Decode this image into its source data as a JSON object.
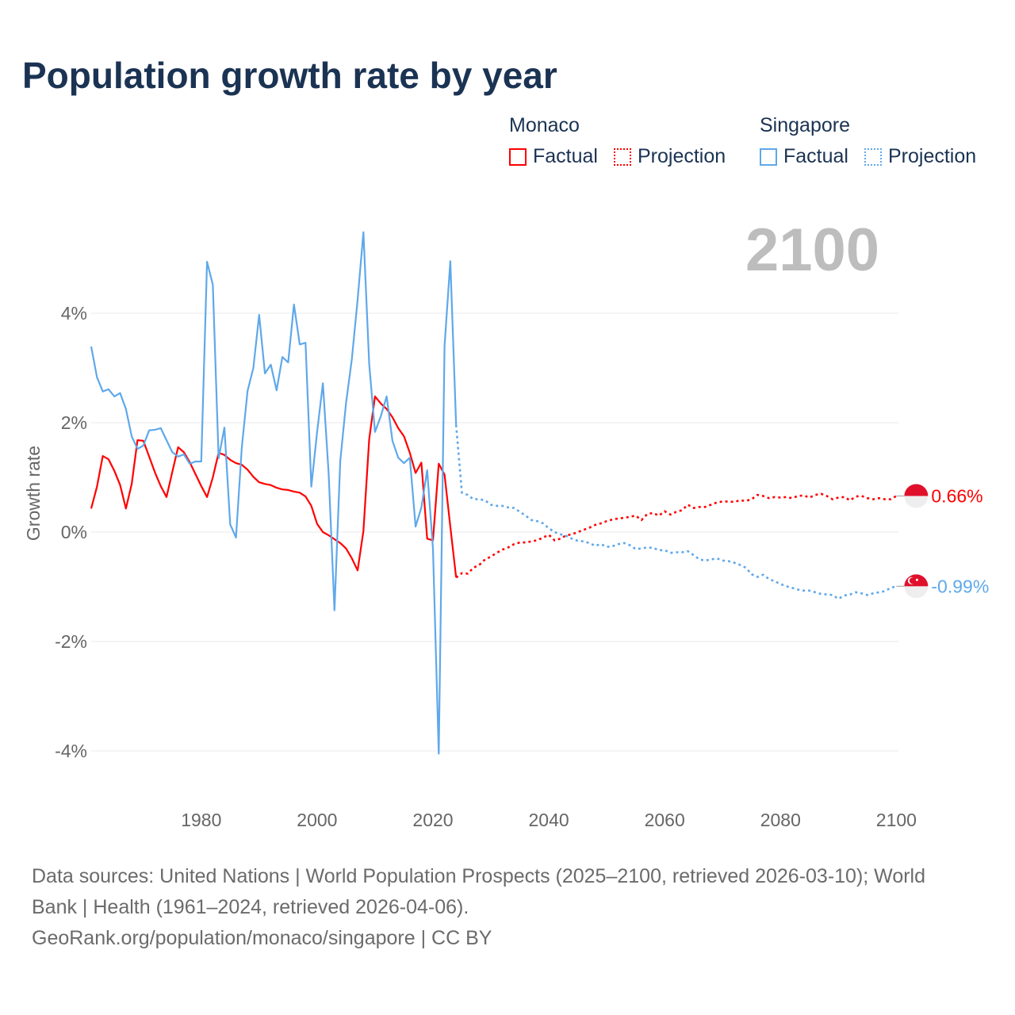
{
  "chart_data": {
    "type": "line",
    "title": "Population growth rate by year",
    "ylabel": "Growth rate",
    "xlabel": "",
    "xlim": [
      1961,
      2100
    ],
    "ylim": [
      -4.8,
      5.5
    ],
    "x_ticks": [
      1980,
      2000,
      2020,
      2040,
      2060,
      2080,
      2100
    ],
    "x_tick_labels": [
      "1980",
      "2000",
      "2020",
      "2040",
      "2060",
      "2080",
      "2100"
    ],
    "y_ticks": [
      4,
      2,
      0,
      -2,
      -4
    ],
    "y_tick_labels": [
      "4%",
      "2%",
      "0%",
      "-2%",
      "-4%"
    ],
    "grid": true,
    "current_year_label": "2100",
    "legend": {
      "placement": "top-right",
      "groups": [
        {
          "name": "Monaco",
          "factual": "Factual",
          "projection": "Projection",
          "color": "#ff0000"
        },
        {
          "name": "Singapore",
          "factual": "Factual",
          "projection": "Projection",
          "color": "#5fa8ea"
        }
      ]
    },
    "series": [
      {
        "name": "Monaco",
        "color": "#ff0000",
        "end_label": "0.66%",
        "factual": [
          [
            1961,
            0.43
          ],
          [
            1962,
            0.83
          ],
          [
            1963,
            1.39
          ],
          [
            1964,
            1.33
          ],
          [
            1965,
            1.12
          ],
          [
            1966,
            0.86
          ],
          [
            1967,
            0.43
          ],
          [
            1968,
            0.88
          ],
          [
            1969,
            1.68
          ],
          [
            1970,
            1.67
          ],
          [
            1971,
            1.38
          ],
          [
            1972,
            1.09
          ],
          [
            1973,
            0.84
          ],
          [
            1974,
            0.64
          ],
          [
            1975,
            1.1
          ],
          [
            1976,
            1.55
          ],
          [
            1977,
            1.46
          ],
          [
            1978,
            1.28
          ],
          [
            1979,
            1.06
          ],
          [
            1980,
            0.84
          ],
          [
            1981,
            0.64
          ],
          [
            1982,
            1.0
          ],
          [
            1983,
            1.45
          ],
          [
            1984,
            1.41
          ],
          [
            1985,
            1.32
          ],
          [
            1986,
            1.26
          ],
          [
            1987,
            1.23
          ],
          [
            1988,
            1.14
          ],
          [
            1989,
            1.01
          ],
          [
            1990,
            0.91
          ],
          [
            1991,
            0.88
          ],
          [
            1992,
            0.86
          ],
          [
            1993,
            0.81
          ],
          [
            1994,
            0.78
          ],
          [
            1995,
            0.77
          ],
          [
            1996,
            0.74
          ],
          [
            1997,
            0.72
          ],
          [
            1998,
            0.65
          ],
          [
            1999,
            0.48
          ],
          [
            2000,
            0.15
          ],
          [
            2001,
            0.0
          ],
          [
            2002,
            -0.06
          ],
          [
            2003,
            -0.13
          ],
          [
            2004,
            -0.2
          ],
          [
            2005,
            -0.3
          ],
          [
            2006,
            -0.48
          ],
          [
            2007,
            -0.7
          ],
          [
            2008,
            0.02
          ],
          [
            2009,
            1.7
          ],
          [
            2010,
            2.48
          ],
          [
            2011,
            2.35
          ],
          [
            2012,
            2.25
          ],
          [
            2013,
            2.1
          ],
          [
            2014,
            1.9
          ],
          [
            2015,
            1.75
          ],
          [
            2016,
            1.45
          ],
          [
            2017,
            1.08
          ],
          [
            2018,
            1.27
          ],
          [
            2019,
            -0.12
          ],
          [
            2020,
            -0.15
          ],
          [
            2021,
            1.25
          ],
          [
            2022,
            1.05
          ],
          [
            2023,
            0.1
          ],
          [
            2024,
            -0.83
          ]
        ],
        "projection": [
          [
            2024,
            -0.83
          ],
          [
            2025,
            -0.75
          ],
          [
            2026,
            -0.76
          ],
          [
            2027,
            -0.65
          ],
          [
            2028,
            -0.6
          ],
          [
            2029,
            -0.5
          ],
          [
            2030,
            -0.45
          ],
          [
            2031,
            -0.38
          ],
          [
            2032,
            -0.32
          ],
          [
            2033,
            -0.28
          ],
          [
            2034,
            -0.22
          ],
          [
            2035,
            -0.19
          ],
          [
            2036,
            -0.19
          ],
          [
            2037,
            -0.17
          ],
          [
            2038,
            -0.15
          ],
          [
            2039,
            -0.1
          ],
          [
            2040,
            -0.05
          ],
          [
            2041,
            -0.15
          ],
          [
            2042,
            -0.12
          ],
          [
            2043,
            -0.06
          ],
          [
            2044,
            -0.04
          ],
          [
            2045,
            0.0
          ],
          [
            2046,
            0.04
          ],
          [
            2047,
            0.08
          ],
          [
            2048,
            0.13
          ],
          [
            2049,
            0.16
          ],
          [
            2050,
            0.2
          ],
          [
            2051,
            0.23
          ],
          [
            2052,
            0.25
          ],
          [
            2053,
            0.26
          ],
          [
            2054,
            0.28
          ],
          [
            2055,
            0.3
          ],
          [
            2056,
            0.22
          ],
          [
            2057,
            0.33
          ],
          [
            2058,
            0.35
          ],
          [
            2059,
            0.3
          ],
          [
            2060,
            0.38
          ],
          [
            2061,
            0.32
          ],
          [
            2062,
            0.37
          ],
          [
            2063,
            0.4
          ],
          [
            2064,
            0.5
          ],
          [
            2065,
            0.44
          ],
          [
            2066,
            0.46
          ],
          [
            2067,
            0.46
          ],
          [
            2068,
            0.5
          ],
          [
            2069,
            0.54
          ],
          [
            2070,
            0.56
          ],
          [
            2071,
            0.56
          ],
          [
            2072,
            0.55
          ],
          [
            2073,
            0.58
          ],
          [
            2074,
            0.57
          ],
          [
            2075,
            0.6
          ],
          [
            2076,
            0.68
          ],
          [
            2077,
            0.66
          ],
          [
            2078,
            0.62
          ],
          [
            2079,
            0.64
          ],
          [
            2080,
            0.63
          ],
          [
            2081,
            0.64
          ],
          [
            2082,
            0.62
          ],
          [
            2083,
            0.66
          ],
          [
            2084,
            0.67
          ],
          [
            2085,
            0.63
          ],
          [
            2086,
            0.68
          ],
          [
            2087,
            0.7
          ],
          [
            2088,
            0.66
          ],
          [
            2089,
            0.6
          ],
          [
            2090,
            0.63
          ],
          [
            2091,
            0.64
          ],
          [
            2092,
            0.58
          ],
          [
            2093,
            0.65
          ],
          [
            2094,
            0.66
          ],
          [
            2095,
            0.62
          ],
          [
            2096,
            0.6
          ],
          [
            2097,
            0.62
          ],
          [
            2098,
            0.6
          ],
          [
            2099,
            0.6
          ],
          [
            2100,
            0.66
          ]
        ]
      },
      {
        "name": "Singapore",
        "color": "#5fa8ea",
        "end_label": "-0.99%",
        "factual": [
          [
            1961,
            3.39
          ],
          [
            1962,
            2.83
          ],
          [
            1963,
            2.57
          ],
          [
            1964,
            2.61
          ],
          [
            1965,
            2.48
          ],
          [
            1966,
            2.54
          ],
          [
            1967,
            2.25
          ],
          [
            1968,
            1.75
          ],
          [
            1969,
            1.52
          ],
          [
            1970,
            1.58
          ],
          [
            1971,
            1.86
          ],
          [
            1972,
            1.87
          ],
          [
            1973,
            1.9
          ],
          [
            1974,
            1.68
          ],
          [
            1975,
            1.46
          ],
          [
            1976,
            1.38
          ],
          [
            1977,
            1.42
          ],
          [
            1978,
            1.25
          ],
          [
            1979,
            1.29
          ],
          [
            1980,
            1.29
          ],
          [
            1981,
            4.94
          ],
          [
            1982,
            4.52
          ],
          [
            1983,
            1.35
          ],
          [
            1984,
            1.91
          ],
          [
            1985,
            0.14
          ],
          [
            1986,
            -0.1
          ],
          [
            1987,
            1.54
          ],
          [
            1988,
            2.58
          ],
          [
            1989,
            3.0
          ],
          [
            1990,
            3.97
          ],
          [
            1991,
            2.9
          ],
          [
            1992,
            3.06
          ],
          [
            1993,
            2.59
          ],
          [
            1994,
            3.2
          ],
          [
            1995,
            3.1
          ],
          [
            1996,
            4.16
          ],
          [
            1997,
            3.43
          ],
          [
            1998,
            3.46
          ],
          [
            1999,
            0.83
          ],
          [
            2000,
            1.83
          ],
          [
            2001,
            2.72
          ],
          [
            2002,
            1.06
          ],
          [
            2003,
            -1.43
          ],
          [
            2004,
            1.3
          ],
          [
            2005,
            2.36
          ],
          [
            2006,
            3.16
          ],
          [
            2007,
            4.25
          ],
          [
            2008,
            5.48
          ],
          [
            2009,
            3.07
          ],
          [
            2010,
            1.83
          ],
          [
            2011,
            2.12
          ],
          [
            2012,
            2.48
          ],
          [
            2013,
            1.67
          ],
          [
            2014,
            1.36
          ],
          [
            2015,
            1.26
          ],
          [
            2016,
            1.36
          ],
          [
            2017,
            0.1
          ],
          [
            2018,
            0.45
          ],
          [
            2019,
            1.13
          ],
          [
            2020,
            -0.3
          ],
          [
            2021,
            -4.05
          ],
          [
            2022,
            3.4
          ],
          [
            2023,
            4.95
          ],
          [
            2024,
            1.96
          ]
        ],
        "projection": [
          [
            2024,
            1.96
          ],
          [
            2025,
            0.72
          ],
          [
            2026,
            0.68
          ],
          [
            2027,
            0.6
          ],
          [
            2028,
            0.6
          ],
          [
            2029,
            0.58
          ],
          [
            2030,
            0.5
          ],
          [
            2031,
            0.48
          ],
          [
            2032,
            0.48
          ],
          [
            2033,
            0.45
          ],
          [
            2034,
            0.44
          ],
          [
            2035,
            0.37
          ],
          [
            2036,
            0.3
          ],
          [
            2037,
            0.22
          ],
          [
            2038,
            0.2
          ],
          [
            2039,
            0.16
          ],
          [
            2040,
            0.07
          ],
          [
            2041,
            0.0
          ],
          [
            2042,
            -0.04
          ],
          [
            2043,
            -0.07
          ],
          [
            2044,
            -0.12
          ],
          [
            2045,
            -0.16
          ],
          [
            2046,
            -0.17
          ],
          [
            2047,
            -0.2
          ],
          [
            2048,
            -0.25
          ],
          [
            2049,
            -0.22
          ],
          [
            2050,
            -0.27
          ],
          [
            2051,
            -0.26
          ],
          [
            2052,
            -0.22
          ],
          [
            2053,
            -0.2
          ],
          [
            2054,
            -0.24
          ],
          [
            2055,
            -0.31
          ],
          [
            2056,
            -0.3
          ],
          [
            2057,
            -0.28
          ],
          [
            2058,
            -0.29
          ],
          [
            2059,
            -0.33
          ],
          [
            2060,
            -0.33
          ],
          [
            2061,
            -0.38
          ],
          [
            2062,
            -0.37
          ],
          [
            2063,
            -0.37
          ],
          [
            2064,
            -0.35
          ],
          [
            2065,
            -0.42
          ],
          [
            2066,
            -0.5
          ],
          [
            2067,
            -0.52
          ],
          [
            2068,
            -0.5
          ],
          [
            2069,
            -0.48
          ],
          [
            2070,
            -0.52
          ],
          [
            2071,
            -0.53
          ],
          [
            2072,
            -0.56
          ],
          [
            2073,
            -0.6
          ],
          [
            2074,
            -0.65
          ],
          [
            2075,
            -0.77
          ],
          [
            2076,
            -0.82
          ],
          [
            2077,
            -0.78
          ],
          [
            2078,
            -0.86
          ],
          [
            2079,
            -0.9
          ],
          [
            2080,
            -0.95
          ],
          [
            2081,
            -0.99
          ],
          [
            2082,
            -1.02
          ],
          [
            2083,
            -1.05
          ],
          [
            2084,
            -1.07
          ],
          [
            2085,
            -1.07
          ],
          [
            2086,
            -1.1
          ],
          [
            2087,
            -1.13
          ],
          [
            2088,
            -1.14
          ],
          [
            2089,
            -1.15
          ],
          [
            2090,
            -1.22
          ],
          [
            2091,
            -1.16
          ],
          [
            2092,
            -1.14
          ],
          [
            2093,
            -1.1
          ],
          [
            2094,
            -1.12
          ],
          [
            2095,
            -1.15
          ],
          [
            2096,
            -1.12
          ],
          [
            2097,
            -1.1
          ],
          [
            2098,
            -1.08
          ],
          [
            2099,
            -1.02
          ],
          [
            2100,
            -0.99
          ]
        ]
      }
    ]
  },
  "footer": {
    "sources": "Data sources: United Nations | World Population Prospects (2025–2100, retrieved 2026-03-10); World Bank | Health (1961–2024, retrieved 2026-04-06).",
    "link": "GeoRank.org/population/monaco/singapore | CC BY"
  }
}
